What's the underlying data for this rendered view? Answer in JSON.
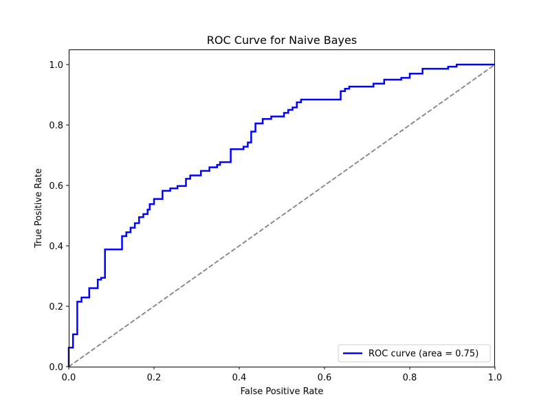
{
  "chart_data": {
    "type": "line",
    "title": "ROC Curve for Naive Bayes",
    "xlabel": "False Positive Rate",
    "ylabel": "True Positive Rate",
    "xlim": [
      0.0,
      1.0
    ],
    "ylim": [
      0.0,
      1.05
    ],
    "x_ticks": [
      "0.0",
      "0.2",
      "0.4",
      "0.6",
      "0.8",
      "1.0"
    ],
    "y_ticks": [
      "0.0",
      "0.2",
      "0.4",
      "0.6",
      "0.8",
      "1.0"
    ],
    "grid": false,
    "legend_position": "lower-right",
    "series": [
      {
        "name": "ROC curve (area = 0.75)",
        "color": "#0000ff",
        "style": "solid-step",
        "points": [
          [
            0.0,
            0.0
          ],
          [
            0.0,
            0.063
          ],
          [
            0.01,
            0.063
          ],
          [
            0.01,
            0.107
          ],
          [
            0.02,
            0.107
          ],
          [
            0.02,
            0.215
          ],
          [
            0.03,
            0.215
          ],
          [
            0.03,
            0.229
          ],
          [
            0.048,
            0.229
          ],
          [
            0.048,
            0.26
          ],
          [
            0.068,
            0.26
          ],
          [
            0.068,
            0.288
          ],
          [
            0.076,
            0.288
          ],
          [
            0.076,
            0.294
          ],
          [
            0.085,
            0.294
          ],
          [
            0.085,
            0.388
          ],
          [
            0.125,
            0.388
          ],
          [
            0.125,
            0.432
          ],
          [
            0.135,
            0.432
          ],
          [
            0.135,
            0.445
          ],
          [
            0.145,
            0.445
          ],
          [
            0.145,
            0.46
          ],
          [
            0.155,
            0.46
          ],
          [
            0.155,
            0.475
          ],
          [
            0.165,
            0.475
          ],
          [
            0.165,
            0.495
          ],
          [
            0.175,
            0.495
          ],
          [
            0.175,
            0.505
          ],
          [
            0.185,
            0.505
          ],
          [
            0.185,
            0.52
          ],
          [
            0.19,
            0.52
          ],
          [
            0.19,
            0.538
          ],
          [
            0.2,
            0.538
          ],
          [
            0.2,
            0.555
          ],
          [
            0.22,
            0.555
          ],
          [
            0.22,
            0.582
          ],
          [
            0.238,
            0.582
          ],
          [
            0.238,
            0.59
          ],
          [
            0.255,
            0.59
          ],
          [
            0.255,
            0.598
          ],
          [
            0.275,
            0.598
          ],
          [
            0.275,
            0.622
          ],
          [
            0.285,
            0.622
          ],
          [
            0.285,
            0.633
          ],
          [
            0.31,
            0.633
          ],
          [
            0.31,
            0.648
          ],
          [
            0.33,
            0.648
          ],
          [
            0.33,
            0.66
          ],
          [
            0.348,
            0.66
          ],
          [
            0.348,
            0.668
          ],
          [
            0.355,
            0.668
          ],
          [
            0.355,
            0.677
          ],
          [
            0.38,
            0.677
          ],
          [
            0.38,
            0.72
          ],
          [
            0.41,
            0.72
          ],
          [
            0.41,
            0.728
          ],
          [
            0.42,
            0.728
          ],
          [
            0.42,
            0.742
          ],
          [
            0.428,
            0.742
          ],
          [
            0.428,
            0.778
          ],
          [
            0.438,
            0.778
          ],
          [
            0.438,
            0.805
          ],
          [
            0.455,
            0.805
          ],
          [
            0.455,
            0.82
          ],
          [
            0.475,
            0.82
          ],
          [
            0.475,
            0.828
          ],
          [
            0.505,
            0.828
          ],
          [
            0.505,
            0.84
          ],
          [
            0.515,
            0.84
          ],
          [
            0.515,
            0.85
          ],
          [
            0.525,
            0.85
          ],
          [
            0.525,
            0.858
          ],
          [
            0.535,
            0.858
          ],
          [
            0.535,
            0.875
          ],
          [
            0.545,
            0.875
          ],
          [
            0.545,
            0.884
          ],
          [
            0.638,
            0.884
          ],
          [
            0.638,
            0.912
          ],
          [
            0.648,
            0.912
          ],
          [
            0.648,
            0.92
          ],
          [
            0.658,
            0.92
          ],
          [
            0.658,
            0.927
          ],
          [
            0.715,
            0.927
          ],
          [
            0.715,
            0.937
          ],
          [
            0.74,
            0.937
          ],
          [
            0.74,
            0.95
          ],
          [
            0.78,
            0.95
          ],
          [
            0.78,
            0.956
          ],
          [
            0.8,
            0.956
          ],
          [
            0.8,
            0.97
          ],
          [
            0.83,
            0.97
          ],
          [
            0.83,
            0.986
          ],
          [
            0.89,
            0.986
          ],
          [
            0.89,
            0.993
          ],
          [
            0.91,
            0.993
          ],
          [
            0.91,
            1.0
          ],
          [
            1.0,
            1.0
          ]
        ]
      },
      {
        "name": "",
        "color": "#808080",
        "style": "dashed",
        "points": [
          [
            0.0,
            0.0
          ],
          [
            1.0,
            1.0
          ]
        ]
      }
    ]
  }
}
